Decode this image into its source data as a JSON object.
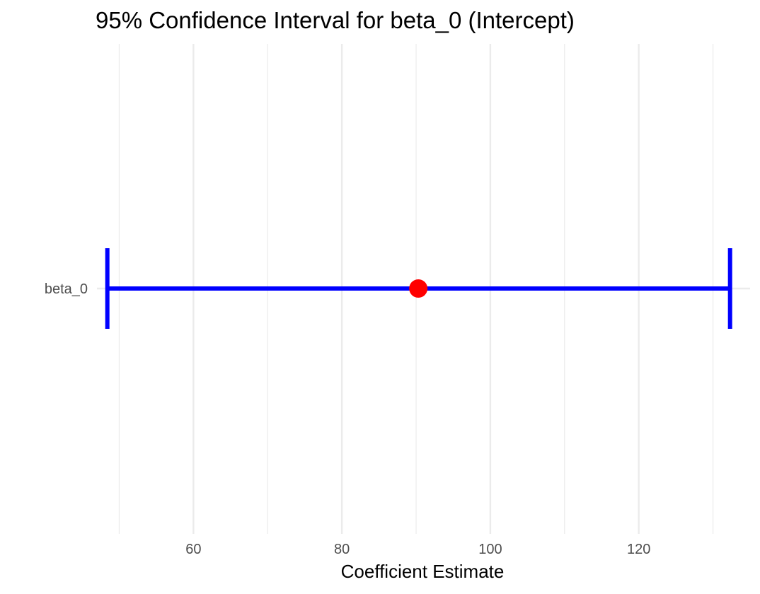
{
  "chart_data": {
    "type": "errorbar",
    "title": "95% Confidence Interval for beta_0 (Intercept)",
    "xlabel": "Coefficient Estimate",
    "ylabel": "",
    "xlim": [
      47,
      135
    ],
    "x_ticks": [
      60,
      80,
      100,
      120
    ],
    "x_minor_ticks": [
      50,
      70,
      90,
      110,
      130
    ],
    "categories": [
      "beta_0"
    ],
    "points": [
      {
        "term": "beta_0",
        "estimate": 90.3,
        "lower": 48.4,
        "upper": 132.3
      }
    ],
    "grid": true,
    "legend": "none",
    "colors": {
      "estimate": "#ff0000",
      "interval": "#0000ff",
      "grid": "#ebebeb",
      "text": "#000000",
      "tick_text": "#4d4d4d"
    }
  }
}
